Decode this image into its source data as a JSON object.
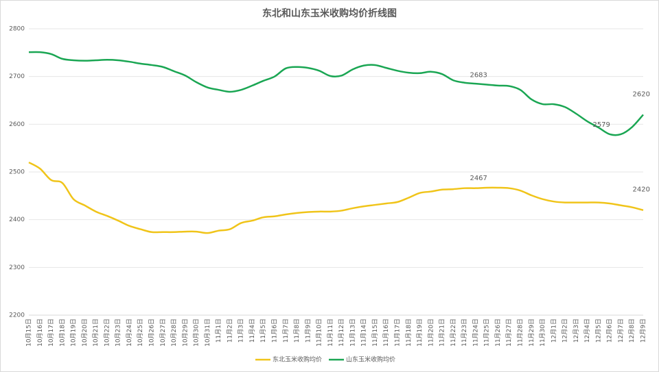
{
  "chart_data": {
    "type": "line",
    "title": "东北和山东玉米收购均价折线图",
    "categories": [
      "10月15日",
      "10月16日",
      "10月17日",
      "10月18日",
      "10月19日",
      "10月20日",
      "10月21日",
      "10月22日",
      "10月23日",
      "10月24日",
      "10月25日",
      "10月26日",
      "10月27日",
      "10月28日",
      "10月29日",
      "10月30日",
      "10月31日",
      "11月1日",
      "11月2日",
      "11月3日",
      "11月4日",
      "11月5日",
      "11月6日",
      "11月7日",
      "11月8日",
      "11月9日",
      "11月10日",
      "11月11日",
      "11月12日",
      "11月13日",
      "11月14日",
      "11月15日",
      "11月16日",
      "11月17日",
      "11月18日",
      "11月19日",
      "11月20日",
      "11月21日",
      "11月22日",
      "11月23日",
      "11月24日",
      "11月25日",
      "11月26日",
      "11月27日",
      "11月28日",
      "11月29日",
      "11月30日",
      "12月1日",
      "12月2日",
      "12月3日",
      "12月4日",
      "12月5日",
      "12月6日",
      "12月7日",
      "12月8日",
      "12月9日"
    ],
    "series": [
      {
        "name": "东北玉米收购均价",
        "color": "#f0c419",
        "label_indices": [
          41,
          55
        ],
        "values": [
          2520,
          2507,
          2483,
          2477,
          2443,
          2430,
          2417,
          2408,
          2398,
          2387,
          2380,
          2374,
          2374,
          2374,
          2375,
          2375,
          2372,
          2377,
          2380,
          2393,
          2398,
          2405,
          2407,
          2411,
          2414,
          2416,
          2417,
          2417,
          2419,
          2424,
          2428,
          2431,
          2434,
          2437,
          2446,
          2456,
          2459,
          2463,
          2464,
          2466,
          2466,
          2467,
          2467,
          2466,
          2461,
          2451,
          2443,
          2438,
          2436,
          2436,
          2436,
          2436,
          2434,
          2430,
          2426,
          2420
        ]
      },
      {
        "name": "山东玉米收购均价",
        "color": "#1aa653",
        "label_indices": [
          41,
          52,
          55
        ],
        "values": [
          2751,
          2751,
          2747,
          2737,
          2734,
          2733,
          2734,
          2735,
          2734,
          2731,
          2727,
          2724,
          2720,
          2711,
          2702,
          2688,
          2677,
          2672,
          2668,
          2672,
          2681,
          2691,
          2700,
          2717,
          2720,
          2718,
          2712,
          2701,
          2702,
          2715,
          2723,
          2724,
          2718,
          2712,
          2708,
          2707,
          2710,
          2705,
          2692,
          2687,
          2685,
          2683,
          2681,
          2680,
          2672,
          2652,
          2642,
          2642,
          2636,
          2622,
          2606,
          2593,
          2579,
          2579,
          2594,
          2620
        ]
      }
    ],
    "ylim": [
      2200,
      2800
    ],
    "yticks": [
      2200,
      2300,
      2400,
      2500,
      2600,
      2700,
      2800
    ],
    "grid": true,
    "legend": "bottom"
  }
}
